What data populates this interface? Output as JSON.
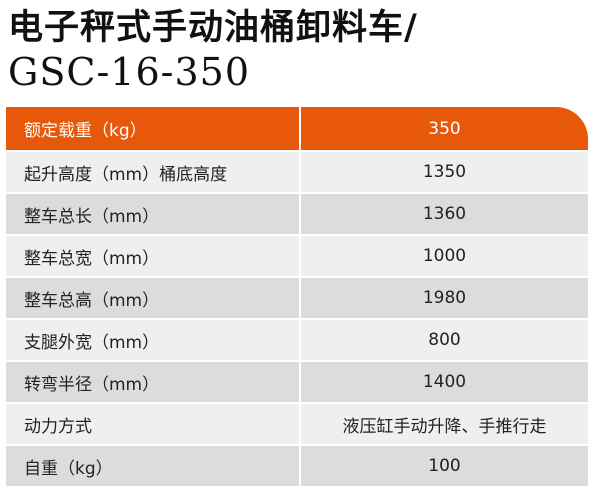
{
  "title": {
    "line1": "电子秤式手动油桶卸料车/",
    "line2": "GSC-16-350"
  },
  "colors": {
    "header": "#e8580b",
    "row_light": "#efefef",
    "row_dark": "#dcdcdc"
  },
  "table": {
    "header": {
      "label": "额定载重（kg）",
      "value": "350"
    },
    "rows": [
      {
        "label": "起升高度（mm）桶底高度",
        "value": "1350"
      },
      {
        "label": "整车总长（mm）",
        "value": "1360"
      },
      {
        "label": "整车总宽（mm）",
        "value": "1000"
      },
      {
        "label": "整车总高（mm）",
        "value": "1980"
      },
      {
        "label": "支腿外宽（mm）",
        "value": "800"
      },
      {
        "label": "转弯半径（mm）",
        "value": "1400"
      },
      {
        "label": "动力方式",
        "value": "液压缸手动升降、手推行走"
      },
      {
        "label": "自重（kg）",
        "value": "100"
      }
    ]
  }
}
